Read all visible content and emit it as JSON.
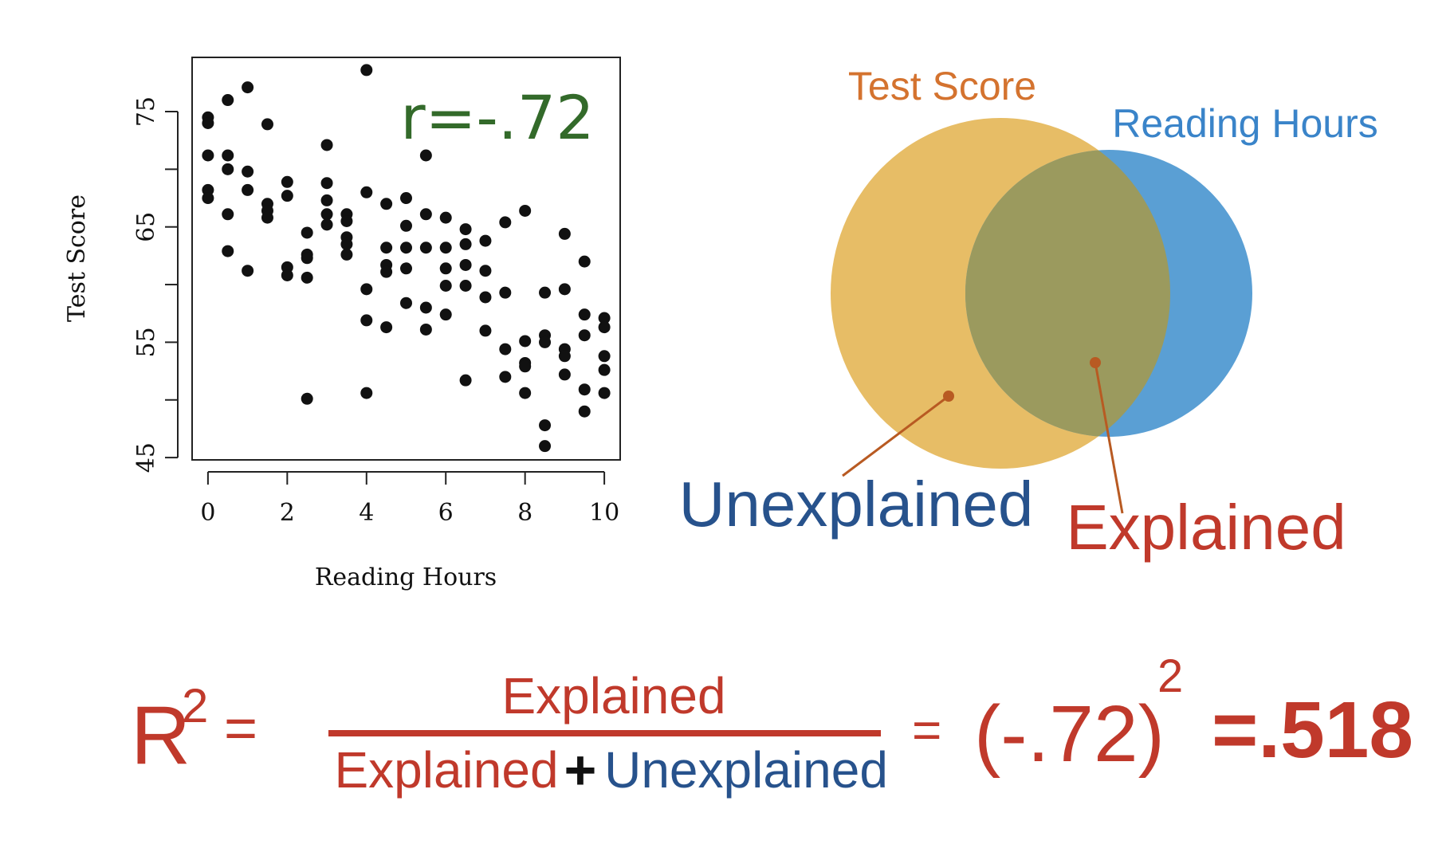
{
  "colors": {
    "orange": "#d4732f",
    "blue": "#3a84c9",
    "green": "#336a2a",
    "red": "#c0392b",
    "navy": "#27528c",
    "circle_score": "#e7bd66",
    "circle_hours": "#5a9fd4",
    "overlap": "#9b9a5e",
    "black": "#111111"
  },
  "chart_data": {
    "type": "scatter",
    "xlabel": "Reading Hours",
    "ylabel": "Test Score",
    "xlim": [
      -0.4,
      10.4
    ],
    "ylim": [
      44.8,
      79.7
    ],
    "x_ticks": [
      "0",
      "2",
      "4",
      "6",
      "8",
      "10"
    ],
    "x_tick_values": [
      0,
      2,
      4,
      6,
      8,
      10
    ],
    "y_ticks": [
      "45",
      "55",
      "65",
      "75"
    ],
    "y_tick_values": [
      45,
      55,
      65,
      75
    ],
    "y_minor_ticks": [
      50,
      60,
      70
    ],
    "annotation": "r=-.72",
    "points": [
      [
        0,
        74.5
      ],
      [
        0,
        74
      ],
      [
        0,
        71.2
      ],
      [
        0,
        68.2
      ],
      [
        0,
        67.5
      ],
      [
        0.5,
        76
      ],
      [
        0.5,
        71.2
      ],
      [
        0.5,
        70
      ],
      [
        0.5,
        66.1
      ],
      [
        0.5,
        62.9
      ],
      [
        1,
        77.1
      ],
      [
        1,
        69.8
      ],
      [
        1,
        68.2
      ],
      [
        1,
        61.2
      ],
      [
        1.5,
        73.9
      ],
      [
        1.5,
        67
      ],
      [
        1.5,
        66.4
      ],
      [
        1.5,
        65.8
      ],
      [
        2,
        68.9
      ],
      [
        2,
        67.7
      ],
      [
        2,
        61.5
      ],
      [
        2,
        60.8
      ],
      [
        2.5,
        64.5
      ],
      [
        2.5,
        62.6
      ],
      [
        2.5,
        62.3
      ],
      [
        2.5,
        60.6
      ],
      [
        2.5,
        50.1
      ],
      [
        3,
        72.1
      ],
      [
        3,
        68.8
      ],
      [
        3,
        67.3
      ],
      [
        3,
        66.1
      ],
      [
        3,
        65.2
      ],
      [
        3.5,
        66.1
      ],
      [
        3.5,
        65.5
      ],
      [
        3.5,
        64.1
      ],
      [
        3.5,
        63.5
      ],
      [
        3.5,
        62.6
      ],
      [
        4,
        78.6
      ],
      [
        4,
        68
      ],
      [
        4,
        59.6
      ],
      [
        4,
        56.9
      ],
      [
        4,
        50.6
      ],
      [
        4.5,
        67
      ],
      [
        4.5,
        63.2
      ],
      [
        4.5,
        61.7
      ],
      [
        4.5,
        61.1
      ],
      [
        4.5,
        56.3
      ],
      [
        5,
        67.5
      ],
      [
        5,
        65.1
      ],
      [
        5,
        63.2
      ],
      [
        5,
        61.4
      ],
      [
        5,
        58.4
      ],
      [
        5.5,
        71.2
      ],
      [
        5.5,
        66.1
      ],
      [
        5.5,
        63.2
      ],
      [
        5.5,
        58
      ],
      [
        5.5,
        56.1
      ],
      [
        6,
        65.8
      ],
      [
        6,
        63.2
      ],
      [
        6,
        61.4
      ],
      [
        6,
        59.9
      ],
      [
        6,
        57.4
      ],
      [
        6.5,
        64.8
      ],
      [
        6.5,
        63.5
      ],
      [
        6.5,
        61.7
      ],
      [
        6.5,
        59.9
      ],
      [
        6.5,
        51.7
      ],
      [
        7,
        63.8
      ],
      [
        7,
        61.2
      ],
      [
        7,
        58.9
      ],
      [
        7,
        56
      ],
      [
        7.5,
        65.4
      ],
      [
        7.5,
        59.3
      ],
      [
        7.5,
        54.4
      ],
      [
        7.5,
        52
      ],
      [
        8,
        66.4
      ],
      [
        8,
        55.1
      ],
      [
        8,
        53.2
      ],
      [
        8,
        52.9
      ],
      [
        8,
        50.6
      ],
      [
        8.5,
        59.3
      ],
      [
        8.5,
        55.6
      ],
      [
        8.5,
        55
      ],
      [
        8.5,
        47.8
      ],
      [
        8.5,
        46
      ],
      [
        9,
        64.4
      ],
      [
        9,
        59.6
      ],
      [
        9,
        54.4
      ],
      [
        9,
        53.8
      ],
      [
        9,
        52.2
      ],
      [
        9.5,
        62
      ],
      [
        9.5,
        57.4
      ],
      [
        9.5,
        55.6
      ],
      [
        9.5,
        50.9
      ],
      [
        9.5,
        49
      ],
      [
        10,
        57.1
      ],
      [
        10,
        56.3
      ],
      [
        10,
        53.8
      ],
      [
        10,
        52.6
      ],
      [
        10,
        50.6
      ]
    ]
  },
  "venn": {
    "test_score_label": "Test Score",
    "reading_hours_label": "Reading Hours",
    "unexplained_label": "Unexplained",
    "explained_label": "Explained"
  },
  "formula": {
    "r": "R",
    "r_exp": "2",
    "eq1": "=",
    "numerator": "Explained",
    "den_explained": "Explained",
    "den_plus": "+",
    "den_unexplained": "Unexplained",
    "eq2": "=",
    "value_base": "(-.72)",
    "value_exp": "2",
    "result": "=.518"
  }
}
